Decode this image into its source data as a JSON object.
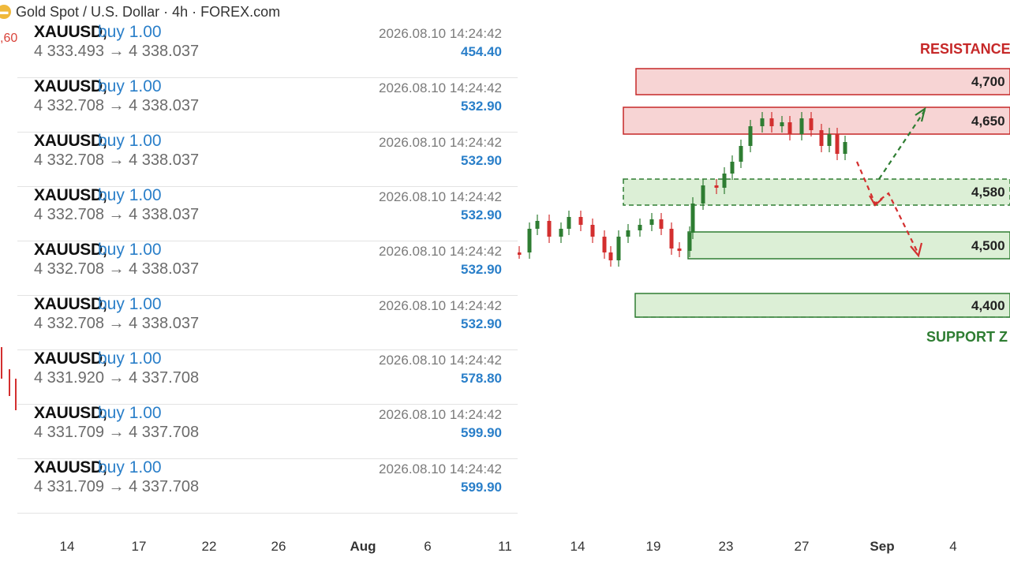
{
  "header": {
    "title": "Gold Spot / U.S. Dollar · 4h · FOREX.com",
    "left_price": "60"
  },
  "trades": [
    {
      "symbol": "XAUUSD,",
      "side": "buy 1.00",
      "prices": "4 333.493 → 4 338.037",
      "time": "2026.08.10 14:24:42",
      "profit": "454.40"
    },
    {
      "symbol": "XAUUSD,",
      "side": "buy 1.00",
      "prices": "4 332.708 → 4 338.037",
      "time": "2026.08.10 14:24:42",
      "profit": "532.90"
    },
    {
      "symbol": "XAUUSD,",
      "side": "buy 1.00",
      "prices": "4 332.708 → 4 338.037",
      "time": "2026.08.10 14:24:42",
      "profit": "532.90"
    },
    {
      "symbol": "XAUUSD,",
      "side": "buy 1.00",
      "prices": "4 332.708 → 4 338.037",
      "time": "2026.08.10 14:24:42",
      "profit": "532.90"
    },
    {
      "symbol": "XAUUSD,",
      "side": "buy 1.00",
      "prices": "4 332.708 → 4 338.037",
      "time": "2026.08.10 14:24:42",
      "profit": "532.90"
    },
    {
      "symbol": "XAUUSD,",
      "side": "buy 1.00",
      "prices": "4 332.708 → 4 338.037",
      "time": "2026.08.10 14:24:42",
      "profit": "532.90"
    },
    {
      "symbol": "XAUUSD,",
      "side": "buy 1.00",
      "prices": "4 331.920 → 4 337.708",
      "time": "2026.08.10 14:24:42",
      "profit": "578.80"
    },
    {
      "symbol": "XAUUSD,",
      "side": "buy 1.00",
      "prices": "4 331.709 → 4 337.708",
      "time": "2026.08.10 14:24:42",
      "profit": "599.90"
    },
    {
      "symbol": "XAUUSD,",
      "side": "buy 1.00",
      "prices": "4 331.709 → 4 337.708",
      "time": "2026.08.10 14:24:42",
      "profit": "599.90"
    }
  ],
  "chart": {
    "resistance_label": "RESISTANCE Z",
    "support_label": "SUPPORT Z",
    "levels": [
      "4,700",
      "4,650",
      "4,580",
      "4,500",
      "4,400"
    ],
    "colors": {
      "resistance": "#c62828",
      "support": "#2e7d32",
      "bull": "#2e7d32",
      "bear": "#d32f2f"
    }
  },
  "date_axis": [
    "14",
    "17",
    "22",
    "26",
    "Aug",
    "6",
    "11",
    "14",
    "19",
    "23",
    "27",
    "Sep",
    "4"
  ]
}
